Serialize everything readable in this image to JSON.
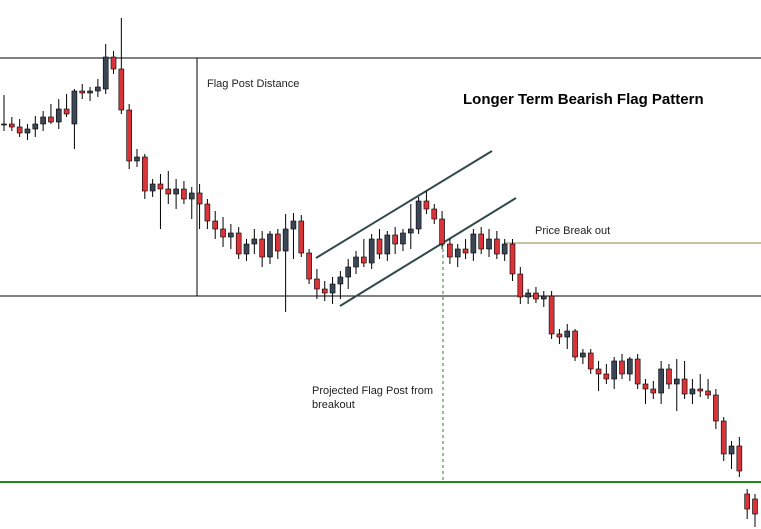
{
  "chart_data": {
    "type": "candlestick",
    "title": "Longer Term Bearish Flag Pattern",
    "annotations": [
      "Flag Post Distance",
      "Price Break out",
      "Projected Flag Post from",
      "breakout"
    ],
    "ylim": [
      0,
      529
    ],
    "up_color": "#3b4756",
    "down_color": "#d9343a",
    "open": [
      404,
      405,
      402,
      396,
      400,
      405,
      412,
      407,
      420,
      405,
      438,
      436,
      438,
      440,
      472,
      460,
      419,
      368,
      372,
      338,
      345,
      340,
      335,
      340,
      330,
      336,
      325,
      308,
      300,
      292,
      296,
      275,
      285,
      290,
      272,
      295,
      278,
      300,
      308,
      276,
      250,
      240,
      236,
      245,
      252,
      262,
      272,
      266,
      290,
      275,
      294,
      285,
      296,
      300,
      328,
      320,
      310,
      285,
      272,
      280,
      276,
      295,
      280,
      290,
      275,
      285,
      255,
      232,
      236,
      230,
      233,
      195,
      192,
      198,
      172,
      176,
      160,
      155,
      150,
      168,
      155,
      170,
      145,
      140,
      136,
      160,
      145,
      150,
      135,
      140,
      138,
      134,
      108,
      75,
      83,
      35,
      30
    ],
    "high": [
      434,
      412,
      410,
      405,
      413,
      418,
      425,
      430,
      435,
      440,
      445,
      442,
      450,
      485,
      478,
      511,
      425,
      380,
      375,
      350,
      355,
      358,
      350,
      348,
      342,
      345,
      330,
      318,
      312,
      305,
      302,
      290,
      300,
      298,
      298,
      300,
      315,
      316,
      314,
      280,
      260,
      248,
      252,
      258,
      270,
      278,
      290,
      295,
      300,
      298,
      302,
      300,
      325,
      332,
      338,
      325,
      318,
      290,
      285,
      290,
      300,
      302,
      300,
      298,
      290,
      290,
      262,
      240,
      242,
      238,
      238,
      200,
      205,
      200,
      180,
      180,
      168,
      165,
      172,
      175,
      172,
      175,
      150,
      148,
      168,
      165,
      170,
      168,
      150,
      155,
      150,
      140,
      112,
      88,
      92,
      40,
      35
    ],
    "low": [
      398,
      398,
      392,
      389,
      392,
      398,
      405,
      400,
      412,
      380,
      430,
      428,
      432,
      435,
      455,
      415,
      360,
      362,
      330,
      332,
      300,
      325,
      320,
      325,
      310,
      300,
      300,
      290,
      282,
      280,
      270,
      268,
      275,
      262,
      265,
      270,
      217,
      270,
      272,
      245,
      230,
      228,
      225,
      230,
      240,
      255,
      262,
      260,
      270,
      268,
      275,
      278,
      280,
      295,
      315,
      305,
      280,
      265,
      262,
      270,
      268,
      275,
      272,
      270,
      268,
      248,
      225,
      225,
      226,
      222,
      190,
      185,
      180,
      168,
      165,
      155,
      138,
      145,
      140,
      150,
      148,
      140,
      125,
      130,
      125,
      140,
      118,
      130,
      125,
      132,
      130,
      100,
      68,
      60,
      52,
      10,
      2
    ],
    "close": [
      405,
      402,
      396,
      400,
      405,
      412,
      407,
      420,
      415,
      438,
      436,
      438,
      442,
      472,
      460,
      419,
      368,
      372,
      338,
      345,
      340,
      335,
      340,
      330,
      336,
      325,
      308,
      300,
      292,
      296,
      275,
      285,
      290,
      272,
      295,
      278,
      300,
      308,
      276,
      250,
      240,
      236,
      245,
      252,
      262,
      272,
      266,
      290,
      275,
      294,
      285,
      296,
      300,
      328,
      320,
      310,
      285,
      272,
      280,
      276,
      295,
      280,
      290,
      275,
      285,
      255,
      232,
      236,
      230,
      233,
      195,
      192,
      198,
      172,
      176,
      160,
      155,
      150,
      168,
      155,
      170,
      145,
      140,
      136,
      160,
      145,
      150,
      135,
      140,
      138,
      134,
      108,
      75,
      83,
      58,
      20,
      15
    ]
  }
}
